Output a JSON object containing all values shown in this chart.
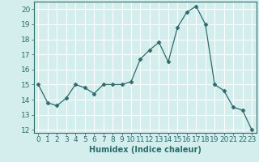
{
  "x": [
    0,
    1,
    2,
    3,
    4,
    5,
    6,
    7,
    8,
    9,
    10,
    11,
    12,
    13,
    14,
    15,
    16,
    17,
    18,
    19,
    20,
    21,
    22,
    23
  ],
  "y": [
    15.0,
    13.8,
    13.6,
    14.1,
    15.0,
    14.8,
    14.4,
    15.0,
    15.0,
    15.0,
    15.2,
    16.7,
    17.3,
    17.8,
    16.5,
    18.8,
    19.8,
    20.2,
    19.0,
    15.0,
    14.6,
    13.5,
    13.3,
    12.0
  ],
  "xlabel": "Humidex (Indice chaleur)",
  "xlim": [
    -0.5,
    23.5
  ],
  "ylim": [
    11.8,
    20.5
  ],
  "yticks": [
    12,
    13,
    14,
    15,
    16,
    17,
    18,
    19,
    20
  ],
  "xticks": [
    0,
    1,
    2,
    3,
    4,
    5,
    6,
    7,
    8,
    9,
    10,
    11,
    12,
    13,
    14,
    15,
    16,
    17,
    18,
    19,
    20,
    21,
    22,
    23
  ],
  "line_color": "#2e6b6b",
  "marker": "D",
  "marker_size": 2.5,
  "bg_color": "#d4eeee",
  "grid_color": "#c0dada",
  "label_fontsize": 7,
  "tick_fontsize": 6.5
}
